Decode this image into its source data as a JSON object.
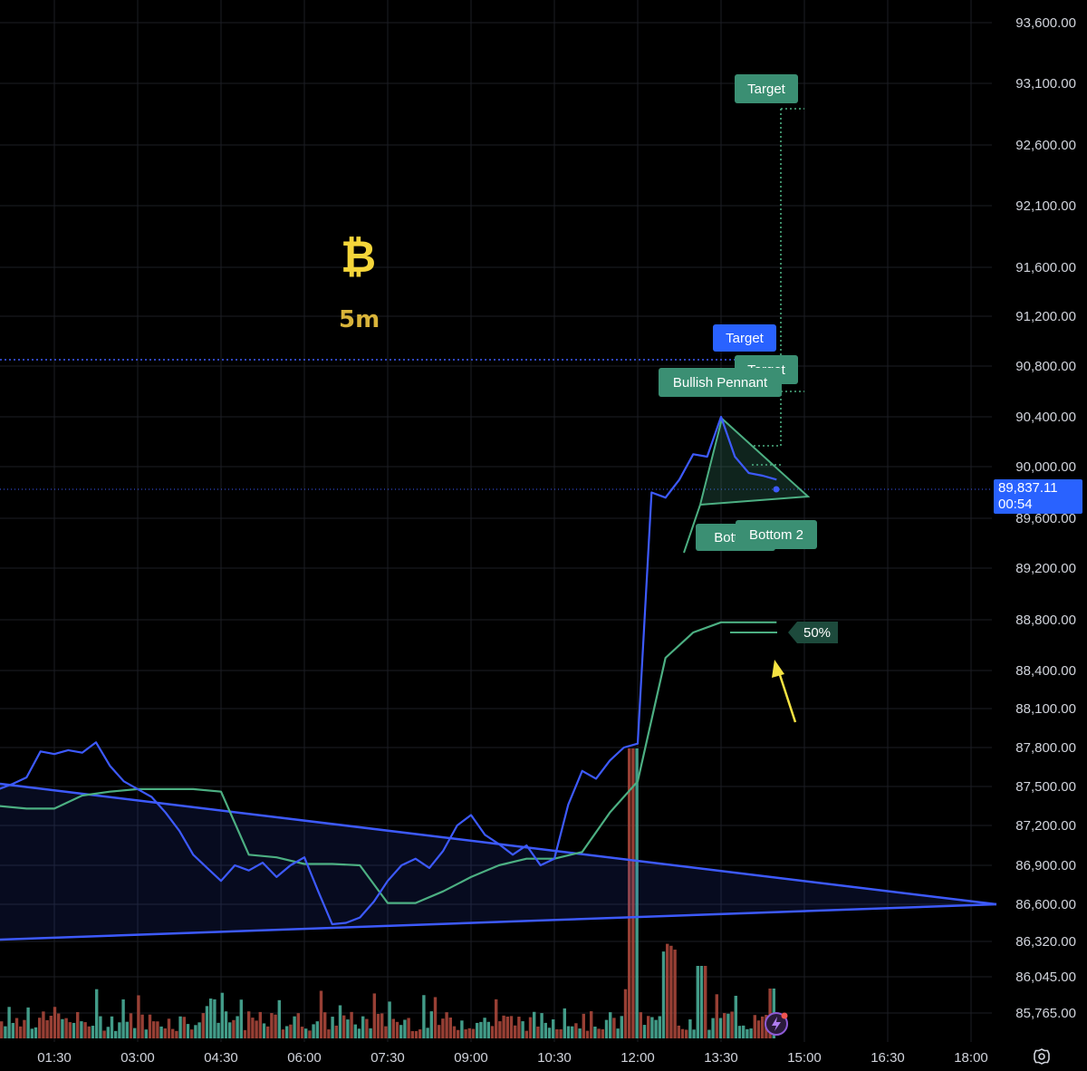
{
  "chart_data": {
    "type": "line",
    "symbol_icon": "bitcoin-icon",
    "timeframe": "5m",
    "y_ticks": [
      "93,600.00",
      "93,100.00",
      "92,600.00",
      "92,100.00",
      "91,600.00",
      "91,200.00",
      "90,800.00",
      "90,400.00",
      "90,000.00",
      "89,600.00",
      "89,200.00",
      "88,800.00",
      "88,400.00",
      "88,100.00",
      "87,800.00",
      "87,500.00",
      "87,200.00",
      "86,900.00",
      "86,600.00",
      "86,320.00",
      "86,045.00",
      "85,765.00"
    ],
    "x_ticks": [
      "01:30",
      "03:00",
      "04:30",
      "06:00",
      "07:30",
      "09:00",
      "10:30",
      "12:00",
      "13:30",
      "15:00",
      "16:30",
      "18:00"
    ],
    "current_price": "89,837.11",
    "countdown": "00:54",
    "series": [
      {
        "values_x": [
          "00:00",
          "00:15",
          "00:30",
          "00:45",
          "01:00",
          "01:15",
          "01:30",
          "01:45",
          "02:00",
          "02:15",
          "02:30",
          "02:45",
          "03:00",
          "03:15",
          "03:30",
          "03:45",
          "04:00",
          "04:15",
          "04:30",
          "04:45",
          "05:00",
          "05:15",
          "05:30",
          "05:45",
          "06:00",
          "06:15",
          "06:30",
          "06:45",
          "07:00",
          "07:15",
          "07:30",
          "07:45",
          "08:00",
          "08:15",
          "08:30",
          "08:45",
          "09:00",
          "09:15",
          "09:30",
          "09:45",
          "10:00",
          "10:15",
          "10:30",
          "10:45",
          "11:00",
          "11:15",
          "11:30",
          "11:45",
          "12:00",
          "12:15",
          "12:30",
          "12:45",
          "13:00",
          "13:15",
          "13:30",
          "13:45",
          "14:00",
          "14:15",
          "14:30"
        ],
        "values": [
          87600,
          87530,
          87480,
          87520,
          87570,
          87770,
          87750,
          87780,
          87760,
          87840,
          87660,
          87540,
          87480,
          87420,
          87300,
          87160,
          86980,
          86880,
          86780,
          86900,
          86860,
          86920,
          86810,
          86900,
          86960,
          86700,
          86450,
          86460,
          86500,
          86620,
          86780,
          86900,
          86950,
          86880,
          87010,
          87200,
          87280,
          87130,
          87060,
          86980,
          87050,
          86900,
          86950,
          87360,
          87620,
          87560,
          87700,
          87800,
          87830,
          89800,
          89760,
          89900,
          90100,
          90080,
          90400,
          90080,
          89950,
          89930,
          89900
        ]
      },
      {
        "values_x": [
          "00:00",
          "00:30",
          "01:00",
          "01:30",
          "02:00",
          "02:30",
          "03:00",
          "03:30",
          "04:00",
          "04:30",
          "05:00",
          "05:30",
          "06:00",
          "06:30",
          "07:00",
          "07:30",
          "08:00",
          "08:30",
          "09:00",
          "09:30",
          "10:00",
          "10:30",
          "11:00",
          "11:30",
          "12:00",
          "12:30",
          "13:00",
          "13:30",
          "14:00",
          "14:30"
        ],
        "values": [
          87280,
          87350,
          87330,
          87330,
          87430,
          87460,
          87480,
          87480,
          87480,
          87460,
          86980,
          86960,
          86910,
          86910,
          86900,
          86610,
          86610,
          86700,
          86810,
          86900,
          86950,
          86950,
          87000,
          87300,
          87540,
          88500,
          88700,
          88780,
          88780,
          88780
        ]
      }
    ],
    "annotations": {
      "target_top": "Target",
      "target_blue": "Target",
      "target_hidden": "Target",
      "pattern": "Bullish Pennant",
      "bottom1": "Bottom",
      "bottom2": "Bottom 2",
      "fib_pct": "50%"
    },
    "colors": {
      "price_line": "#3d5afe",
      "ma_line": "#4caf82",
      "teal_label": "#3b8f73",
      "blue_label": "#2962ff",
      "volume_up": "#4db6a0",
      "volume_down": "#b24a3d",
      "arrow": "#f5e342"
    }
  }
}
